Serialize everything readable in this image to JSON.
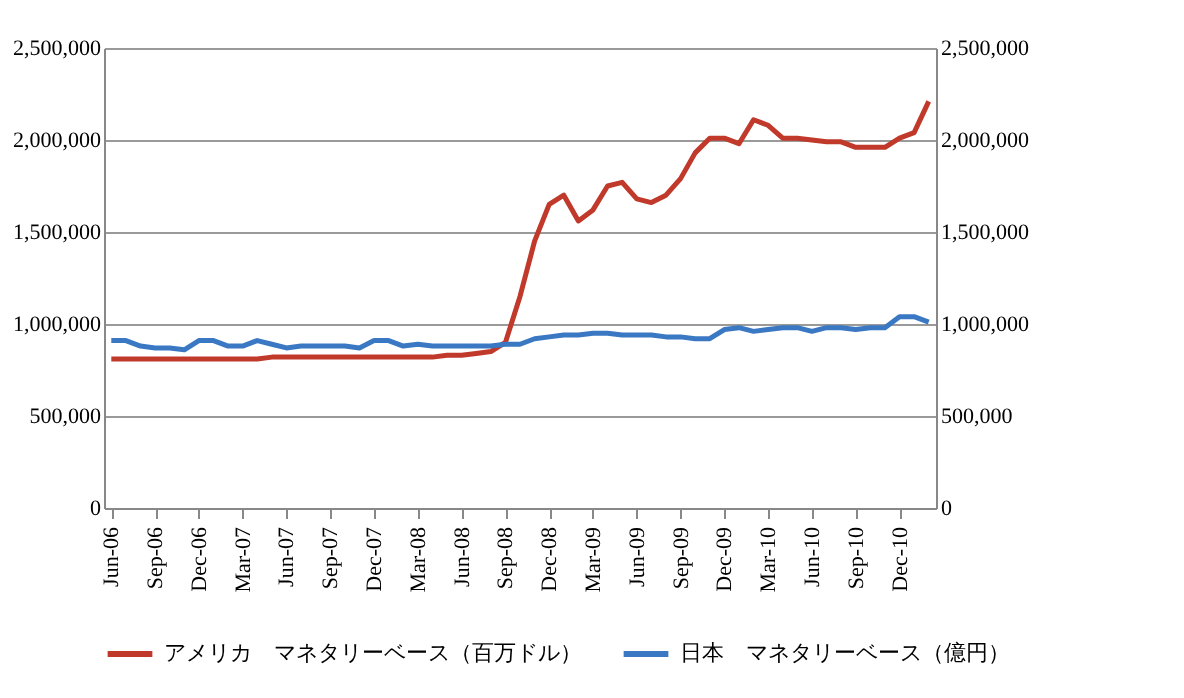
{
  "chart_data": {
    "type": "line",
    "categories": [
      "Jun-06",
      null,
      null,
      "Sep-06",
      null,
      null,
      "Dec-06",
      null,
      null,
      "Mar-07",
      null,
      null,
      "Jun-07",
      null,
      null,
      "Sep-07",
      null,
      null,
      "Dec-07",
      null,
      null,
      "Mar-08",
      null,
      null,
      "Jun-08",
      null,
      null,
      "Sep-08",
      null,
      null,
      "Dec-08",
      null,
      null,
      "Mar-09",
      null,
      null,
      "Jun-09",
      null,
      null,
      "Sep-09",
      null,
      null,
      "Dec-09",
      null,
      null,
      "Mar-10",
      null,
      null,
      "Jun-10",
      null,
      null,
      "Sep-10",
      null,
      null,
      "Dec-10",
      null,
      null
    ],
    "series": [
      {
        "name": "アメリカ　マネタリーベース（百万ドル）",
        "color": "#c0392b",
        "values": [
          810000,
          810000,
          810000,
          810000,
          810000,
          810000,
          810000,
          810000,
          810000,
          810000,
          810000,
          820000,
          820000,
          820000,
          820000,
          820000,
          820000,
          820000,
          820000,
          820000,
          820000,
          820000,
          820000,
          830000,
          830000,
          840000,
          850000,
          900000,
          1150000,
          1450000,
          1650000,
          1700000,
          1560000,
          1620000,
          1750000,
          1770000,
          1680000,
          1660000,
          1700000,
          1790000,
          1930000,
          2010000,
          2010000,
          1980000,
          2110000,
          2080000,
          2010000,
          2010000,
          2000000,
          1990000,
          1990000,
          1960000,
          1960000,
          1960000,
          2010000,
          2040000,
          2210000
        ]
      },
      {
        "name": "日本　マネタリーベース（億円）",
        "color": "#3a78c3",
        "axis": "y2",
        "values": [
          910000,
          910000,
          880000,
          870000,
          870000,
          860000,
          910000,
          910000,
          880000,
          880000,
          910000,
          890000,
          870000,
          880000,
          880000,
          880000,
          880000,
          870000,
          910000,
          910000,
          880000,
          890000,
          880000,
          880000,
          880000,
          880000,
          880000,
          890000,
          890000,
          920000,
          930000,
          940000,
          940000,
          950000,
          950000,
          940000,
          940000,
          940000,
          930000,
          930000,
          920000,
          920000,
          970000,
          980000,
          960000,
          970000,
          980000,
          980000,
          960000,
          980000,
          980000,
          970000,
          980000,
          980000,
          1040000,
          1040000,
          1010000
        ]
      }
    ],
    "ylim": [
      0,
      2500000
    ],
    "yticks": [
      0,
      {
        "value": 500000,
        "label": "500,000"
      },
      {
        "value": 1000000,
        "label": "1,000,000"
      },
      {
        "value": 1500000,
        "label": "1,500,000"
      },
      {
        "value": 2000000,
        "label": "2,000,000"
      },
      {
        "value": 2500000,
        "label": "2,500,000"
      }
    ],
    "y2lim": [
      0,
      2500000
    ],
    "y2ticks": [
      0,
      {
        "value": 500000,
        "label": "500,000"
      },
      {
        "value": 1000000,
        "label": "1,000,000"
      },
      {
        "value": 1500000,
        "label": "1,500,000"
      },
      {
        "value": 2000000,
        "label": "2,000,000"
      },
      {
        "value": 2500000,
        "label": "2,500,000"
      }
    ],
    "grid": "y",
    "legend": "bottom"
  }
}
